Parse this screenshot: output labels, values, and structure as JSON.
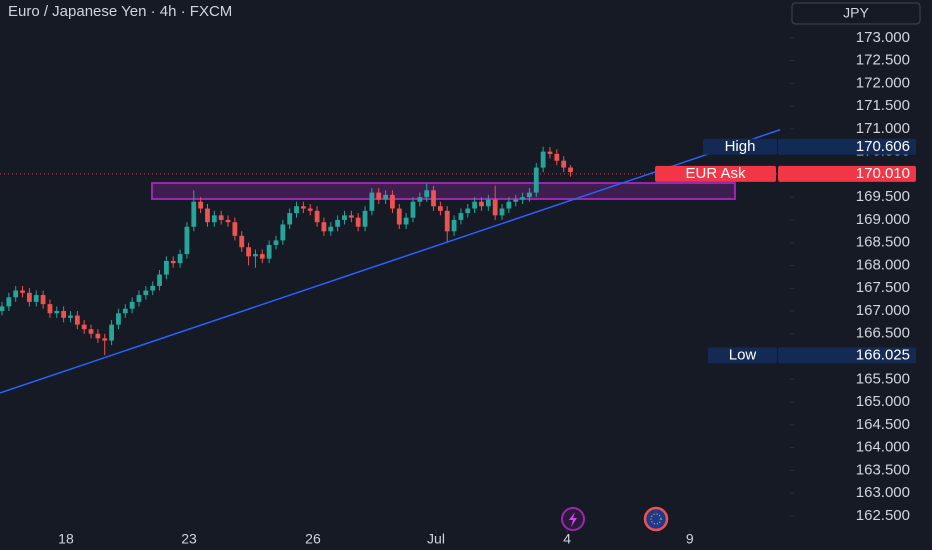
{
  "chart_data": {
    "type": "candlestick",
    "title": "Euro / Japanese Yen · 4h · FXCM",
    "currency": "JPY",
    "up_color": "#26a69a",
    "down_color": "#ef5350",
    "open": [
      167.0,
      167.1,
      167.3,
      167.45,
      167.4,
      167.2,
      167.35,
      167.15,
      166.95,
      167.0,
      166.85,
      166.9,
      166.7,
      166.6,
      166.5,
      166.4,
      166.35,
      166.7,
      166.95,
      167.05,
      167.2,
      167.35,
      167.45,
      167.55,
      167.8,
      168.1,
      168.05,
      168.25,
      168.85,
      169.4,
      169.25,
      168.95,
      169.1,
      169.0,
      168.95,
      168.65,
      168.4,
      168.2,
      168.25,
      168.15,
      168.45,
      168.55,
      168.9,
      169.15,
      169.3,
      169.25,
      169.2,
      168.95,
      168.75,
      168.85,
      169.0,
      169.1,
      169.05,
      168.85,
      169.2,
      169.6,
      169.45,
      169.55,
      169.25,
      168.9,
      169.05,
      169.4,
      169.5,
      169.65,
      169.3,
      169.2,
      168.75,
      169.0,
      169.15,
      169.25,
      169.4,
      169.3,
      169.45,
      169.1,
      169.25,
      169.4,
      169.45,
      169.5,
      169.6,
      170.15,
      170.5,
      170.45,
      170.3,
      170.15
    ],
    "high": [
      167.2,
      167.4,
      167.55,
      167.55,
      167.5,
      167.45,
      167.45,
      167.25,
      167.1,
      167.1,
      167.0,
      167.0,
      166.8,
      166.7,
      166.6,
      166.5,
      166.8,
      167.05,
      167.15,
      167.3,
      167.45,
      167.55,
      167.65,
      167.9,
      168.2,
      168.2,
      168.35,
      168.95,
      169.65,
      169.5,
      169.35,
      169.2,
      169.2,
      169.1,
      169.05,
      168.75,
      168.5,
      168.35,
      168.35,
      168.55,
      168.65,
      169.0,
      169.25,
      169.4,
      169.4,
      169.35,
      169.3,
      169.05,
      168.95,
      169.1,
      169.2,
      169.2,
      169.15,
      169.3,
      169.7,
      169.7,
      169.65,
      169.65,
      169.35,
      169.15,
      169.5,
      169.6,
      169.8,
      169.75,
      169.4,
      169.3,
      169.1,
      169.25,
      169.35,
      169.5,
      169.5,
      169.55,
      169.75,
      169.35,
      169.5,
      169.55,
      169.6,
      169.7,
      170.25,
      170.61,
      170.6,
      170.55,
      170.4,
      170.2
    ],
    "low": [
      166.9,
      167.0,
      167.2,
      167.3,
      167.1,
      167.1,
      167.05,
      166.85,
      166.85,
      166.75,
      166.75,
      166.6,
      166.5,
      166.4,
      166.3,
      166.03,
      166.25,
      166.6,
      166.85,
      166.95,
      167.1,
      167.25,
      167.35,
      167.45,
      167.7,
      167.95,
      167.95,
      168.15,
      168.75,
      169.15,
      168.85,
      168.85,
      168.9,
      168.85,
      168.55,
      168.3,
      168.0,
      167.95,
      168.05,
      168.05,
      168.35,
      168.45,
      168.8,
      169.05,
      169.15,
      169.1,
      168.85,
      168.65,
      168.65,
      168.75,
      168.9,
      168.95,
      168.75,
      168.75,
      169.1,
      169.35,
      169.35,
      169.15,
      168.8,
      168.8,
      168.95,
      169.3,
      169.4,
      169.2,
      169.1,
      168.5,
      168.65,
      168.9,
      169.05,
      169.15,
      169.2,
      169.2,
      169.0,
      169.0,
      169.15,
      169.3,
      169.35,
      169.4,
      169.5,
      170.05,
      170.35,
      170.2,
      170.05,
      169.95
    ],
    "close": [
      167.1,
      167.3,
      167.45,
      167.4,
      167.2,
      167.35,
      167.15,
      166.95,
      167.0,
      166.85,
      166.9,
      166.7,
      166.6,
      166.5,
      166.4,
      166.35,
      166.7,
      166.95,
      167.05,
      167.2,
      167.35,
      167.45,
      167.55,
      167.8,
      168.1,
      168.05,
      168.25,
      168.85,
      169.4,
      169.25,
      168.95,
      169.1,
      169.0,
      168.95,
      168.65,
      168.4,
      168.2,
      168.25,
      168.15,
      168.45,
      168.55,
      168.9,
      169.15,
      169.3,
      169.25,
      169.2,
      168.95,
      168.75,
      168.85,
      169.0,
      169.1,
      169.05,
      168.85,
      169.2,
      169.6,
      169.45,
      169.55,
      169.25,
      168.9,
      169.05,
      169.4,
      169.5,
      169.65,
      169.3,
      169.2,
      168.75,
      169.0,
      169.15,
      169.25,
      169.4,
      169.3,
      169.45,
      169.1,
      169.25,
      169.4,
      169.45,
      169.5,
      169.6,
      170.15,
      170.5,
      170.45,
      170.3,
      170.15,
      170.05
    ],
    "xlim": [
      -0.29,
      115.04
    ],
    "xticks": [
      {
        "value": 9.34,
        "label": "18"
      },
      {
        "value": 27.3,
        "label": "23"
      },
      {
        "value": 45.4,
        "label": "26"
      },
      {
        "value": 63.36,
        "label": "Jul"
      },
      {
        "value": 82.5,
        "label": "4"
      },
      {
        "value": 100.4,
        "label": "9"
      }
    ],
    "ylim": [
      162.19,
      173.83
    ],
    "yticks": [
      {
        "value": 173,
        "label": "173.000"
      },
      {
        "value": 172.5,
        "label": "172.500"
      },
      {
        "value": 172,
        "label": "172.000"
      },
      {
        "value": 171.5,
        "label": "171.500"
      },
      {
        "value": 171,
        "label": "171.000"
      },
      {
        "value": 170.5,
        "label": "170.500"
      },
      {
        "value": 170,
        "label": "170.000"
      },
      {
        "value": 169.5,
        "label": "169.500"
      },
      {
        "value": 169,
        "label": "169.000"
      },
      {
        "value": 168.5,
        "label": "168.500"
      },
      {
        "value": 168,
        "label": "168.000"
      },
      {
        "value": 167.5,
        "label": "167.500"
      },
      {
        "value": 167,
        "label": "167.000"
      },
      {
        "value": 166.5,
        "label": "166.500"
      },
      {
        "value": 166,
        "label": "166.000"
      },
      {
        "value": 165.5,
        "label": "165.500"
      },
      {
        "value": 165,
        "label": "165.000"
      },
      {
        "value": 164.5,
        "label": "164.500"
      },
      {
        "value": 164,
        "label": "164.000"
      },
      {
        "value": 163.5,
        "label": "163.500"
      },
      {
        "value": 163,
        "label": "163.000"
      },
      {
        "value": 162.5,
        "label": "162.500"
      }
    ],
    "trendline": {
      "x": [
        -0.29,
        113.6
      ],
      "y": [
        165.2,
        170.98
      ],
      "color": "#2962ff"
    },
    "zone": {
      "x": [
        21.9,
        107
      ],
      "y": [
        169.46,
        169.81
      ],
      "color": "#9c27b0"
    },
    "high_tag": {
      "text": "High",
      "price": {
        "value": 170.606,
        "label": "170.606"
      }
    },
    "low_tag": {
      "text": "Low",
      "price": {
        "value": 166.025,
        "label": "166.025"
      }
    },
    "ask_tag": {
      "text": "EUR Ask",
      "price": {
        "value": 170.01,
        "label": "170.010"
      }
    }
  }
}
